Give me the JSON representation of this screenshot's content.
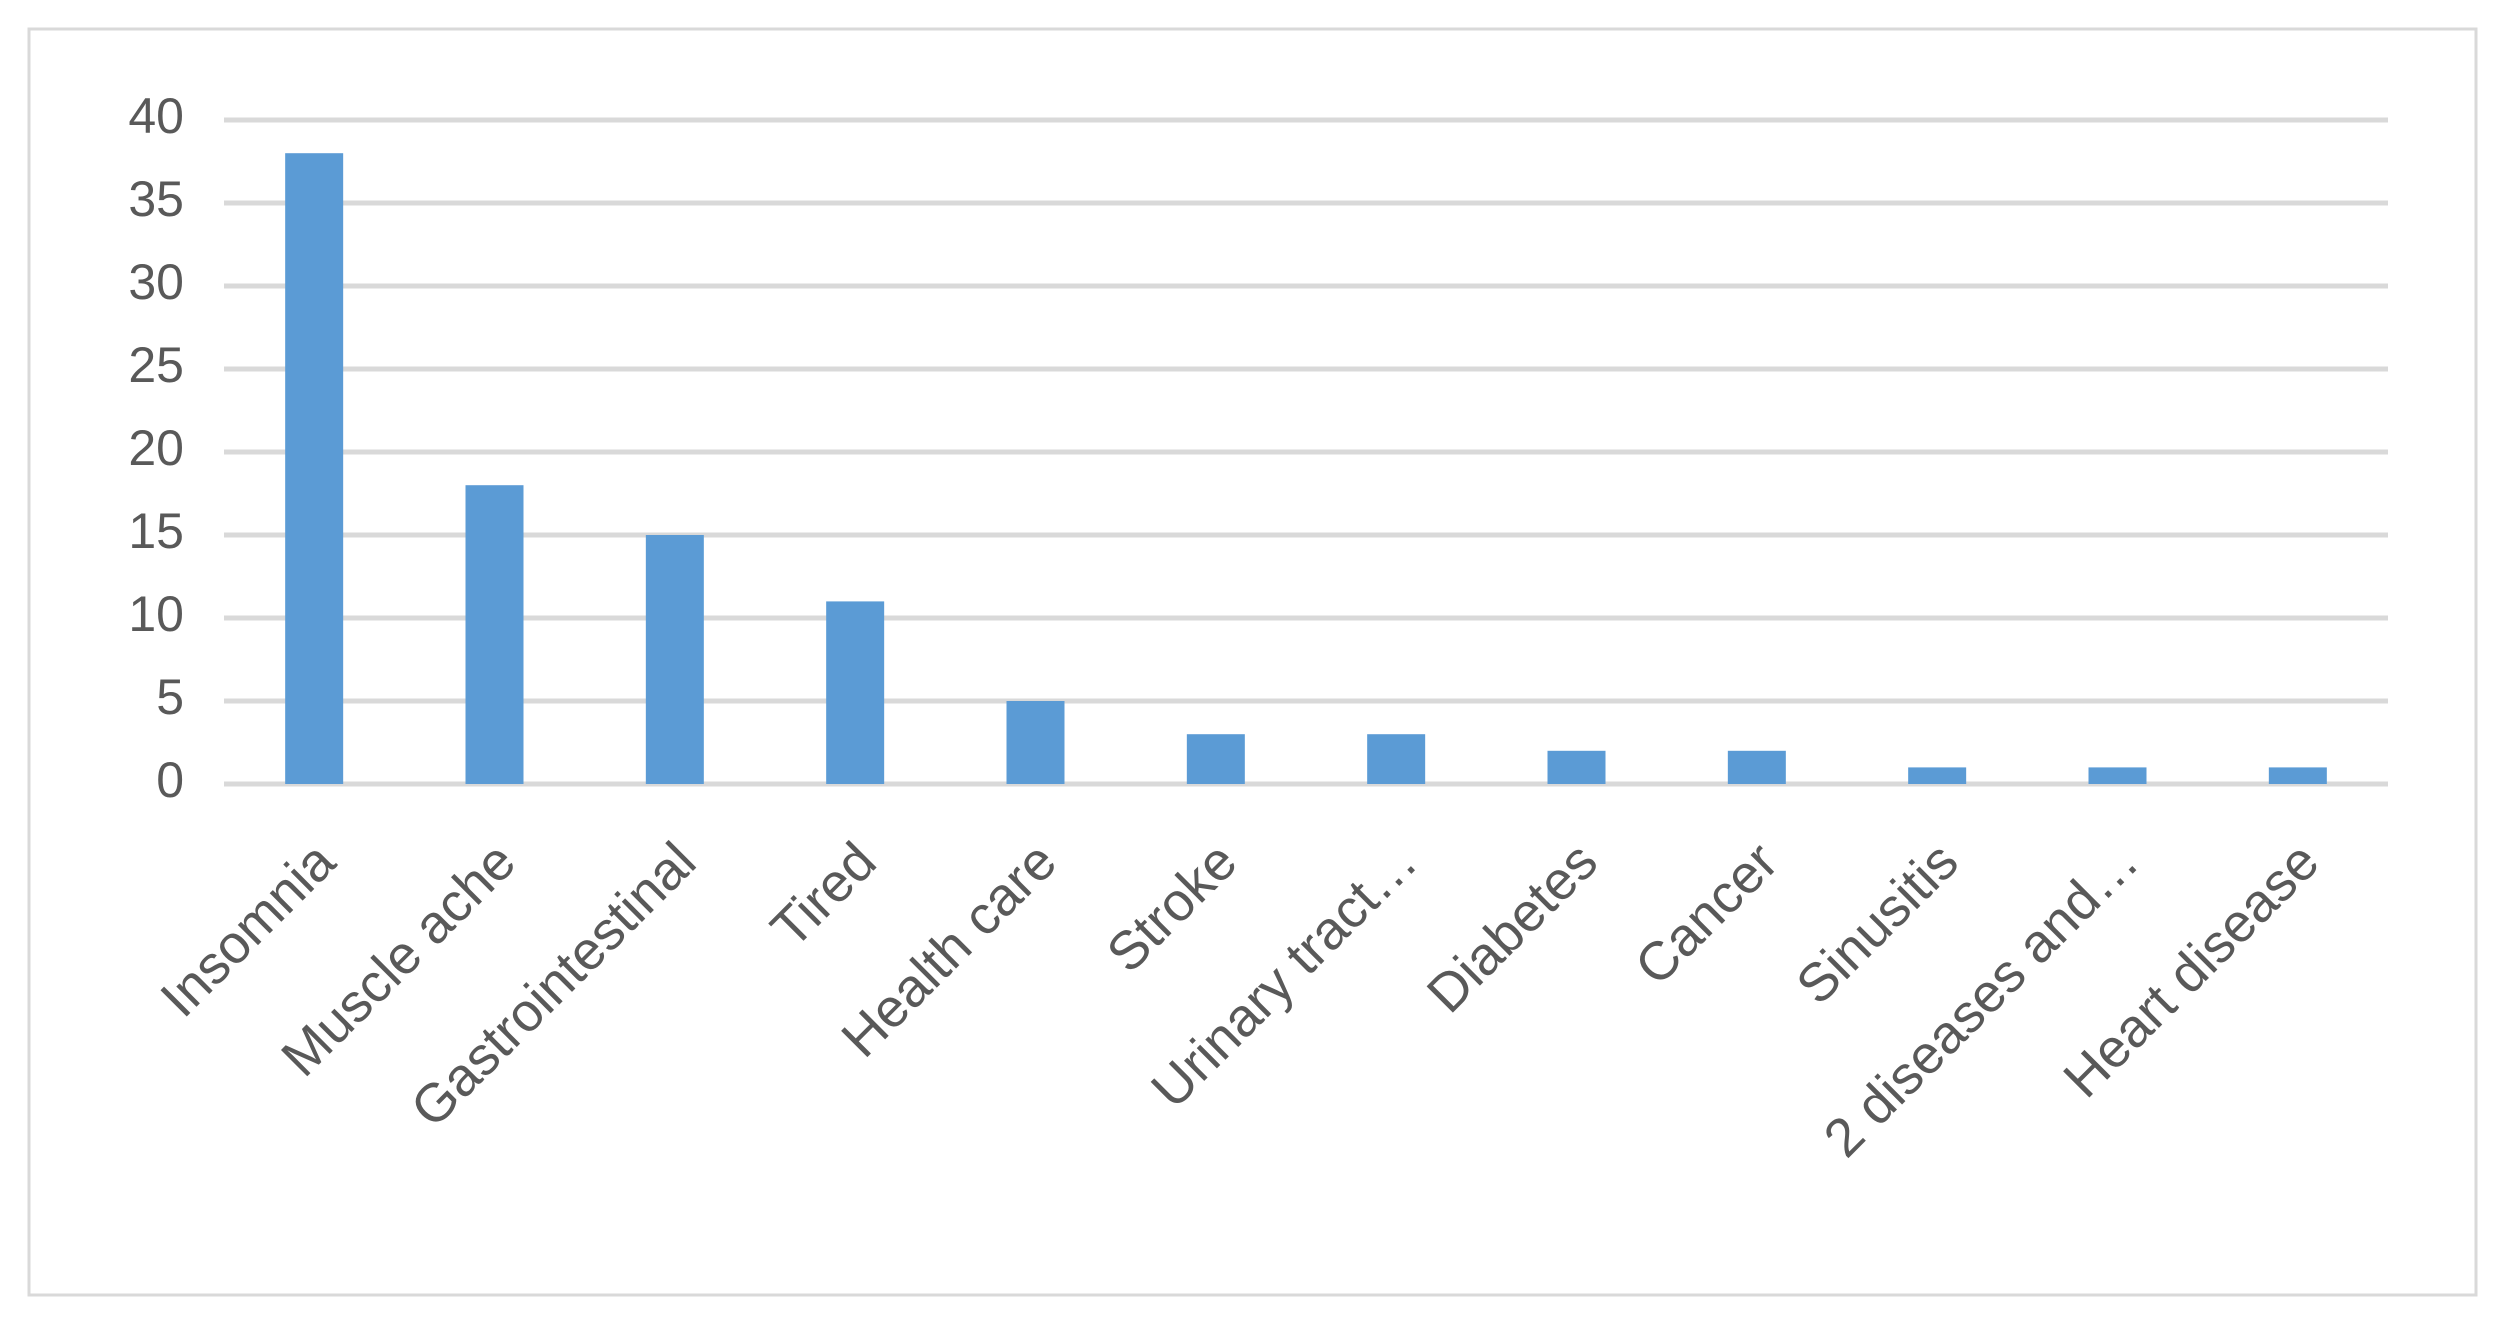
{
  "chart_data": {
    "type": "bar",
    "categories": [
      "Insomnia",
      "Muscle ache",
      "Gastrointestinal",
      "Tired",
      "Health care",
      "Stroke",
      "Urinary tract…",
      "Diabetes",
      "Cancer",
      "Sinusitis",
      "2 diseases and…",
      "Heart disease"
    ],
    "values": [
      38,
      18,
      15,
      11,
      5,
      3,
      3,
      2,
      2,
      1,
      1,
      1
    ],
    "color": "#5b9bd5",
    "ylim": [
      0,
      40
    ],
    "yticks": [
      0,
      5,
      10,
      15,
      20,
      25,
      30,
      35,
      40
    ],
    "grid": true
  }
}
